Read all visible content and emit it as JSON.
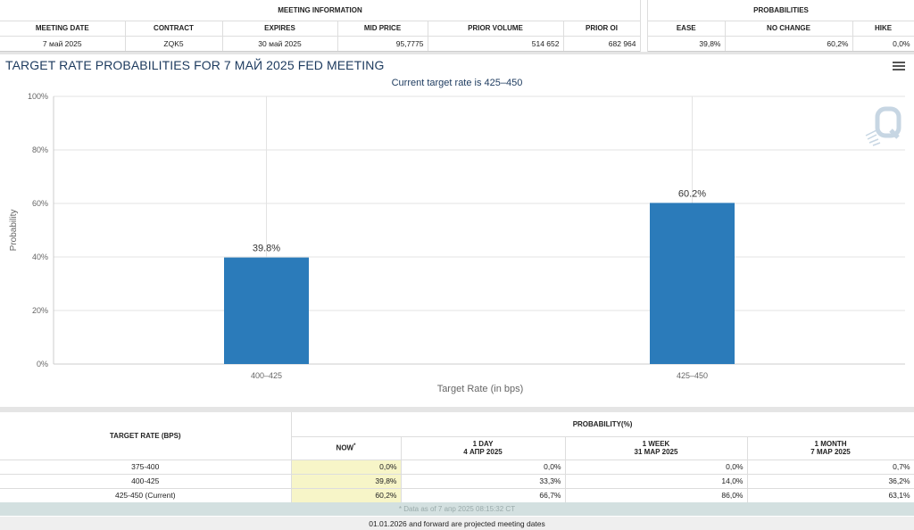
{
  "top": {
    "meeting_info_title": "MEETING INFORMATION",
    "probabilities_title": "PROBABILITIES",
    "meeting_headers": [
      "MEETING DATE",
      "CONTRACT",
      "EXPIRES",
      "MID PRICE",
      "PRIOR VOLUME",
      "PRIOR OI"
    ],
    "meeting_values": [
      "7 май 2025",
      "ZQK5",
      "30 май 2025",
      "95,7775",
      "514 652",
      "682 964"
    ],
    "prob_headers": [
      "EASE",
      "NO CHANGE",
      "HIKE"
    ],
    "prob_values": [
      "39,8%",
      "60,2%",
      "0,0%"
    ]
  },
  "chart_title": "TARGET RATE PROBABILITIES FOR 7 МАЙ 2025 FED MEETING",
  "chart_data": {
    "type": "bar",
    "title": "TARGET RATE PROBABILITIES FOR 7 МАЙ 2025 FED MEETING",
    "subtitle": "Current target rate is 425–450",
    "categories": [
      "400–425",
      "425–450"
    ],
    "values": [
      39.8,
      60.2
    ],
    "data_labels": [
      "39.8%",
      "60.2%"
    ],
    "xlabel": "Target Rate (in bps)",
    "ylabel": "Probability",
    "ylim": [
      0,
      100
    ],
    "yticks": [
      "0%",
      "20%",
      "40%",
      "60%",
      "80%",
      "100%"
    ],
    "ytick_values": [
      0,
      20,
      40,
      60,
      80,
      100
    ],
    "grid": true,
    "bar_color": "#2b7bba"
  },
  "icons": {
    "menu": "hamburger-menu-icon",
    "watermark": "q-logo-icon"
  },
  "bottom": {
    "target_rate_header": "TARGET RATE (BPS)",
    "probability_header": "PROBABILITY(%)",
    "now_label": "NOW",
    "now_mark": "*",
    "col_1day": {
      "label": "1 DAY",
      "date": "4 АПР 2025"
    },
    "col_1week": {
      "label": "1 WEEK",
      "date": "31 МАР 2025"
    },
    "col_1month": {
      "label": "1 MONTH",
      "date": "7 МАР 2025"
    },
    "rows": [
      {
        "rate": "375-400",
        "now": "0,0%",
        "d1": "0,0%",
        "w1": "0,0%",
        "m1": "0,7%"
      },
      {
        "rate": "400-425",
        "now": "39,8%",
        "d1": "33,3%",
        "w1": "14,0%",
        "m1": "36,2%"
      },
      {
        "rate": "425-450 (Current)",
        "now": "60,2%",
        "d1": "66,7%",
        "w1": "86,0%",
        "m1": "63,1%"
      }
    ],
    "footnote": "* Data as of 7 апр 2025 08:15:32 CT",
    "projected_note": "01.01.2026 and forward are projected meeting dates"
  }
}
